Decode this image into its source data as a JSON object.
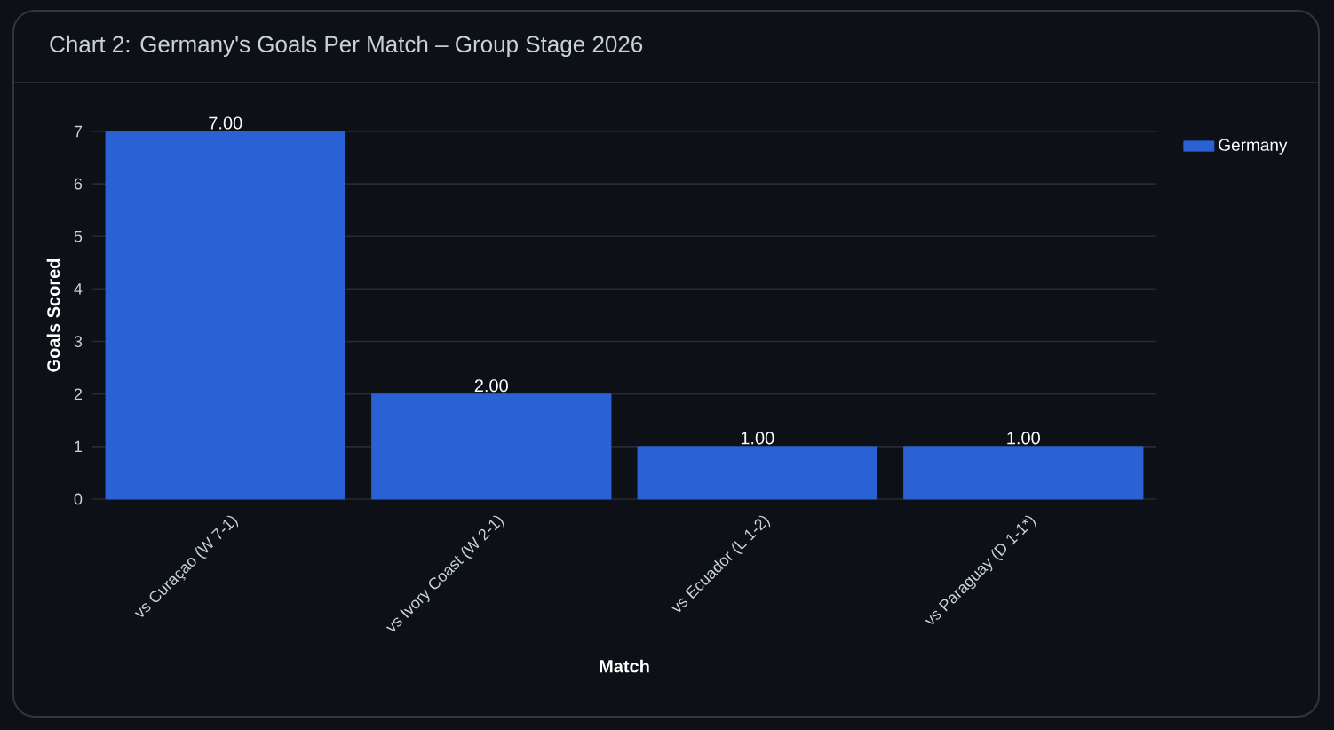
{
  "chart_data": {
    "type": "bar",
    "title": "Chart 2: Germany's Goals Per Match – Group Stage 2026",
    "xlabel": "Match",
    "ylabel": "Goals Scored",
    "categories": [
      "vs Curaçao (W 7-1)",
      "vs Ivory Coast (W 2-1)",
      "vs Ecuador (L 1-2)",
      "vs Paraguay (D 1-1*)"
    ],
    "series": [
      {
        "name": "Germany",
        "color": "#2a62d6",
        "values": [
          7,
          2,
          1,
          1
        ],
        "value_labels": [
          "7.00",
          "2.00",
          "1.00",
          "1.00"
        ]
      }
    ],
    "ylim": [
      0,
      7
    ],
    "yticks": [
      0,
      1,
      2,
      3,
      4,
      5,
      6,
      7
    ],
    "grid": "y",
    "legend": "top right"
  }
}
